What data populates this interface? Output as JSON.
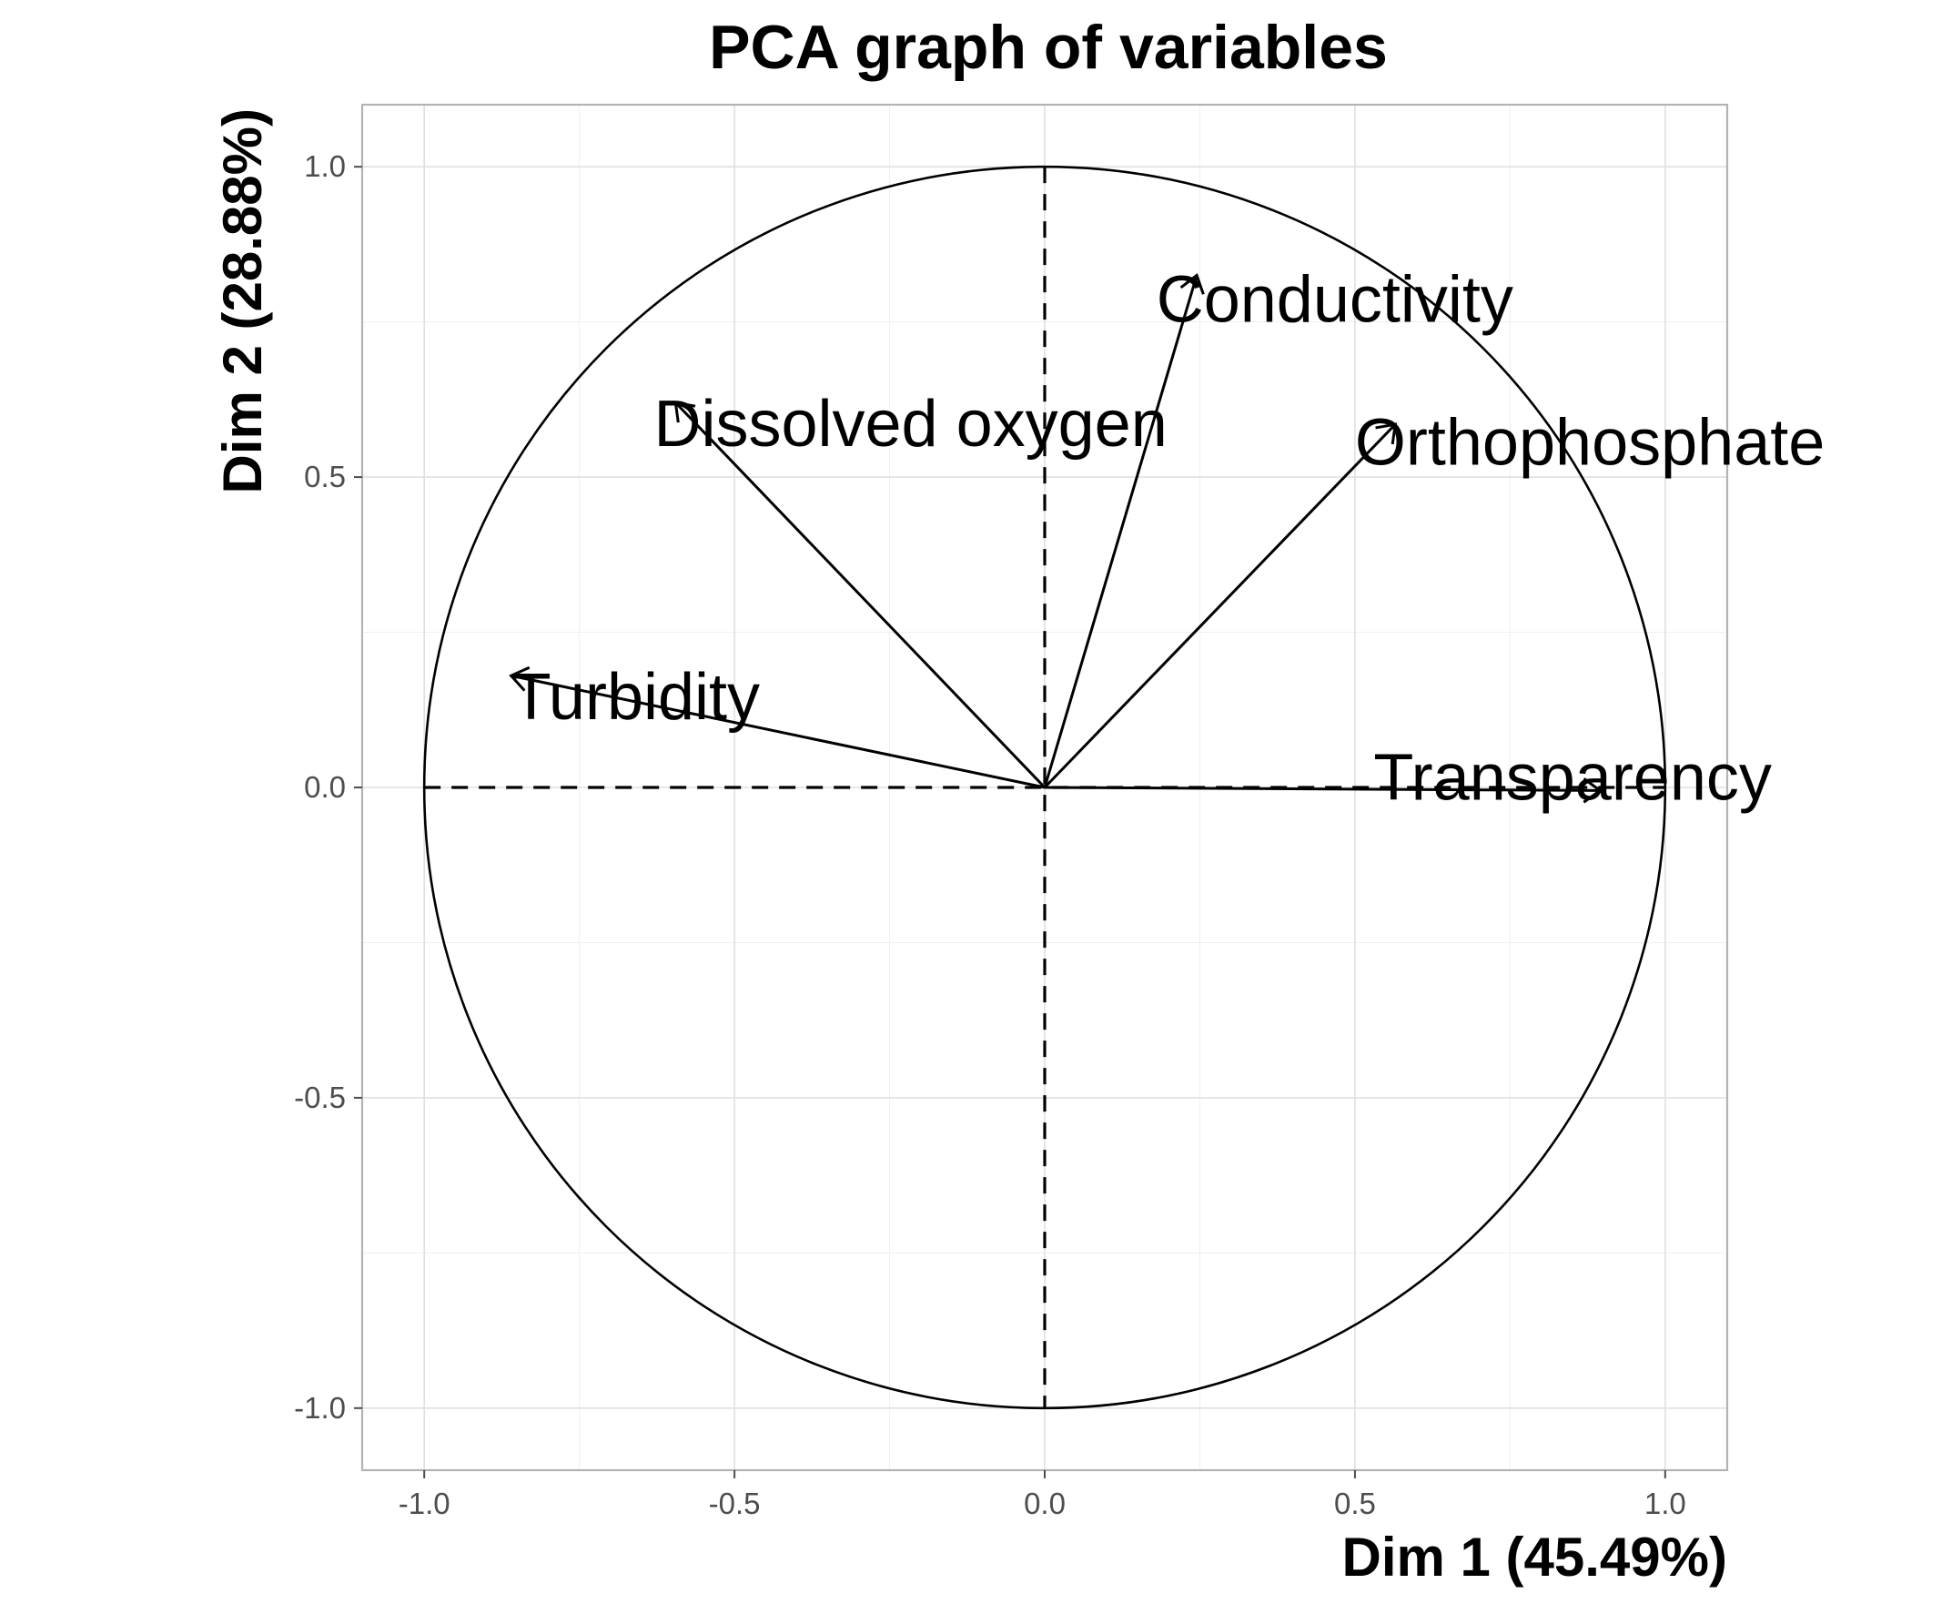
{
  "chart_data": {
    "type": "scatter",
    "title": "PCA graph of variables",
    "xlabel": "Dim 1 (45.49%)",
    "ylabel": "Dim 2 (28.88%)",
    "xlim": [
      -1.1,
      1.1
    ],
    "ylim": [
      -1.1,
      1.1
    ],
    "x_ticks": [
      -1.0,
      -0.5,
      0.0,
      0.5,
      1.0
    ],
    "y_ticks": [
      -1.0,
      -0.5,
      0.0,
      0.5,
      1.0
    ],
    "x_tick_labels": [
      "-1.0",
      "-0.5",
      "0.0",
      "0.5",
      "1.0"
    ],
    "y_tick_labels": [
      "-1.0",
      "-0.5",
      "0.0",
      "0.5",
      "1.0"
    ],
    "grid": true,
    "correlation_circle_radius": 1.0,
    "variables": [
      {
        "name": "Conductivity",
        "x": 0.245,
        "y": 0.825,
        "label_x": 0.18,
        "label_y": 0.75
      },
      {
        "name": "Dissolved oxygen",
        "x": -0.595,
        "y": 0.62,
        "label_x": -0.63,
        "label_y": 0.55
      },
      {
        "name": "Orthophosphate",
        "x": 0.565,
        "y": 0.585,
        "label_x": 0.5,
        "label_y": 0.52
      },
      {
        "name": "Turbidity",
        "x": -0.86,
        "y": 0.18,
        "label_x": -0.86,
        "label_y": 0.11
      },
      {
        "name": "Transparency",
        "x": 0.895,
        "y": -0.005,
        "label_x": 0.53,
        "label_y": -0.02
      }
    ]
  }
}
